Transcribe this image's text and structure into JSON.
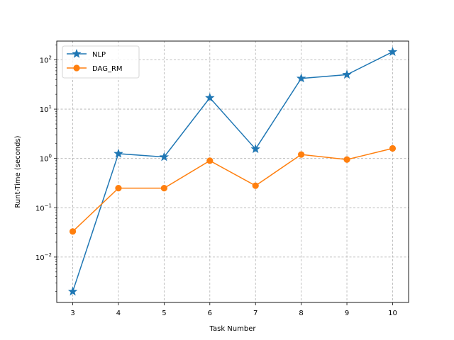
{
  "chart_data": {
    "type": "line",
    "xlabel": "Task Number",
    "ylabel": "Runt-Time (seconds)",
    "yscale": "log",
    "ylim": [
      0.0012,
      240
    ],
    "xlim": [
      2.65,
      10.35
    ],
    "x": [
      3,
      4,
      5,
      6,
      7,
      8,
      9,
      10
    ],
    "x_tick_labels": [
      "3",
      "4",
      "5",
      "6",
      "7",
      "8",
      "9",
      "10"
    ],
    "y_ticks": [
      {
        "value": 0.01,
        "base": "10",
        "exp": "−2"
      },
      {
        "value": 0.1,
        "base": "10",
        "exp": "−1"
      },
      {
        "value": 1,
        "base": "10",
        "exp": "0"
      },
      {
        "value": 10,
        "base": "10",
        "exp": "1"
      },
      {
        "value": 100,
        "base": "10",
        "exp": "2"
      }
    ],
    "grid": true,
    "legend_position": "top-left",
    "series": [
      {
        "name": "NLP",
        "color": "#1f77b4",
        "marker": "star",
        "values": [
          0.002,
          1.25,
          1.07,
          17,
          1.55,
          42,
          50,
          145
        ]
      },
      {
        "name": "DAG_RM",
        "color": "#ff7f0e",
        "marker": "circle",
        "values": [
          0.033,
          0.25,
          0.25,
          0.9,
          0.28,
          1.2,
          0.95,
          1.6
        ]
      }
    ]
  }
}
